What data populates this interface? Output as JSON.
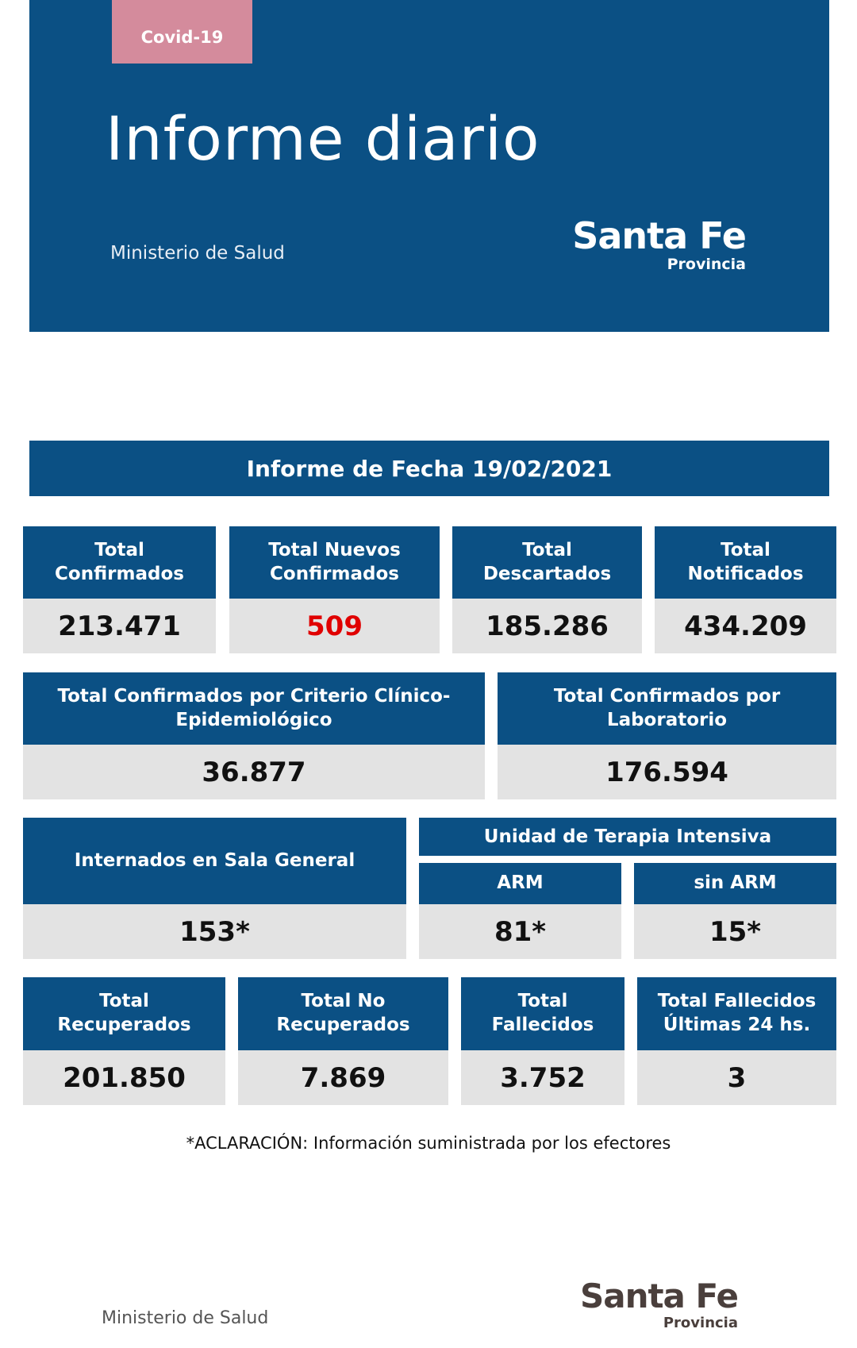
{
  "header": {
    "tag": "Covid-19",
    "title": "Informe diario",
    "ministry": "Ministerio de Salud",
    "brand": {
      "name": "Santa Fe",
      "sub": "Provincia"
    }
  },
  "report": {
    "date_title": "Informe de Fecha 19/02/2021",
    "row1": [
      {
        "label": "Total\nConfirmados",
        "value": "213.471"
      },
      {
        "label": "Total Nuevos\nConfirmados",
        "value": "509"
      },
      {
        "label": "Total\nDescartados",
        "value": "185.286"
      },
      {
        "label": "Total\nNotificados",
        "value": "434.209"
      }
    ],
    "row2": [
      {
        "label": "Total Confirmados por Criterio Clínico-\nEpidemiológico",
        "value": "36.877"
      },
      {
        "label": "Total Confirmados por\nLaboratorio",
        "value": "176.594"
      }
    ],
    "row3": {
      "general": {
        "label": "Internados en Sala General",
        "value": "153*"
      },
      "uti_title": "Unidad de Terapia Intensiva",
      "arm": {
        "label": "ARM",
        "value": "81*"
      },
      "sin_arm": {
        "label": "sin ARM",
        "value": "15*"
      }
    },
    "row4": [
      {
        "label": "Total\nRecuperados",
        "value": "201.850"
      },
      {
        "label": "Total No\nRecuperados",
        "value": "7.869"
      },
      {
        "label": "Total\nFallecidos",
        "value": "3.752"
      },
      {
        "label": "Total Fallecidos\nÚltimas 24 hs.",
        "value": "3"
      }
    ],
    "footnote": "*ACLARACIÓN: Información suministrada por los efectores"
  },
  "footer": {
    "ministry": "Ministerio de Salud",
    "brand": {
      "name": "Santa Fe",
      "sub": "Provincia"
    }
  },
  "colors": {
    "primary": "#0b5084",
    "accent": "#d48b9c",
    "value_bg": "#e3e3e3",
    "highlight": "#e00000"
  }
}
